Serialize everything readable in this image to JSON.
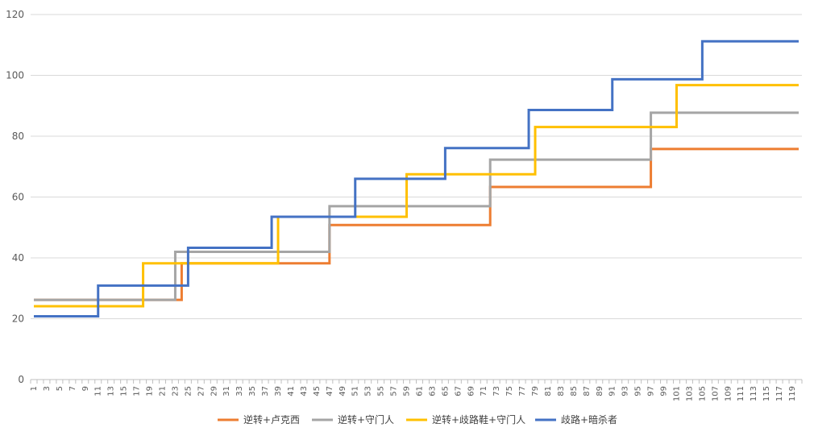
{
  "chart_data": {
    "type": "line",
    "x": {
      "start": 1,
      "end": 120
    },
    "x_tick_labels": [
      "1",
      "3",
      "5",
      "7",
      "9",
      "11",
      "13",
      "15",
      "17",
      "19",
      "21",
      "23",
      "25",
      "27",
      "29",
      "31",
      "33",
      "35",
      "37",
      "39",
      "41",
      "43",
      "45",
      "47",
      "49",
      "51",
      "53",
      "55",
      "57",
      "59",
      "61",
      "63",
      "65",
      "67",
      "69",
      "71",
      "73",
      "75",
      "77",
      "79",
      "81",
      "83",
      "85",
      "87",
      "89",
      "91",
      "93",
      "95",
      "97",
      "99",
      "101",
      "103",
      "105",
      "107",
      "109",
      "111",
      "113",
      "115",
      "117",
      "119"
    ],
    "y_ticks": [
      0,
      20,
      40,
      60,
      80,
      100,
      120
    ],
    "ylim": [
      0,
      120
    ],
    "grid": true,
    "legend_position": "bottom",
    "series": [
      {
        "name": "逆转+卢克西",
        "color": "#ED7D31",
        "steps": [
          {
            "from": 1,
            "value": 26.2
          },
          {
            "from": 25,
            "value": 38.2
          },
          {
            "from": 48,
            "value": 50.8
          },
          {
            "from": 73,
            "value": 63.3
          },
          {
            "from": 98,
            "value": 75.8
          }
        ]
      },
      {
        "name": "逆转+守门人",
        "color": "#A5A5A5",
        "steps": [
          {
            "from": 1,
            "value": 26.2
          },
          {
            "from": 24,
            "value": 42.0
          },
          {
            "from": 48,
            "value": 57.0
          },
          {
            "from": 73,
            "value": 72.3
          },
          {
            "from": 98,
            "value": 87.7
          }
        ]
      },
      {
        "name": "逆转+歧路鞋+守门人",
        "color": "#FFC000",
        "steps": [
          {
            "from": 1,
            "value": 24.1
          },
          {
            "from": 19,
            "value": 38.2
          },
          {
            "from": 40,
            "value": 53.5
          },
          {
            "from": 60,
            "value": 67.5
          },
          {
            "from": 80,
            "value": 83.0
          },
          {
            "from": 102,
            "value": 96.8
          }
        ]
      },
      {
        "name": "歧路+暗杀者",
        "color": "#4472C4",
        "steps": [
          {
            "from": 1,
            "value": 20.8
          },
          {
            "from": 12,
            "value": 30.9
          },
          {
            "from": 26,
            "value": 43.3
          },
          {
            "from": 39,
            "value": 53.5
          },
          {
            "from": 52,
            "value": 66.0
          },
          {
            "from": 66,
            "value": 76.1
          },
          {
            "from": 79,
            "value": 88.6
          },
          {
            "from": 92,
            "value": 98.7
          },
          {
            "from": 106,
            "value": 111.2
          }
        ]
      }
    ]
  }
}
